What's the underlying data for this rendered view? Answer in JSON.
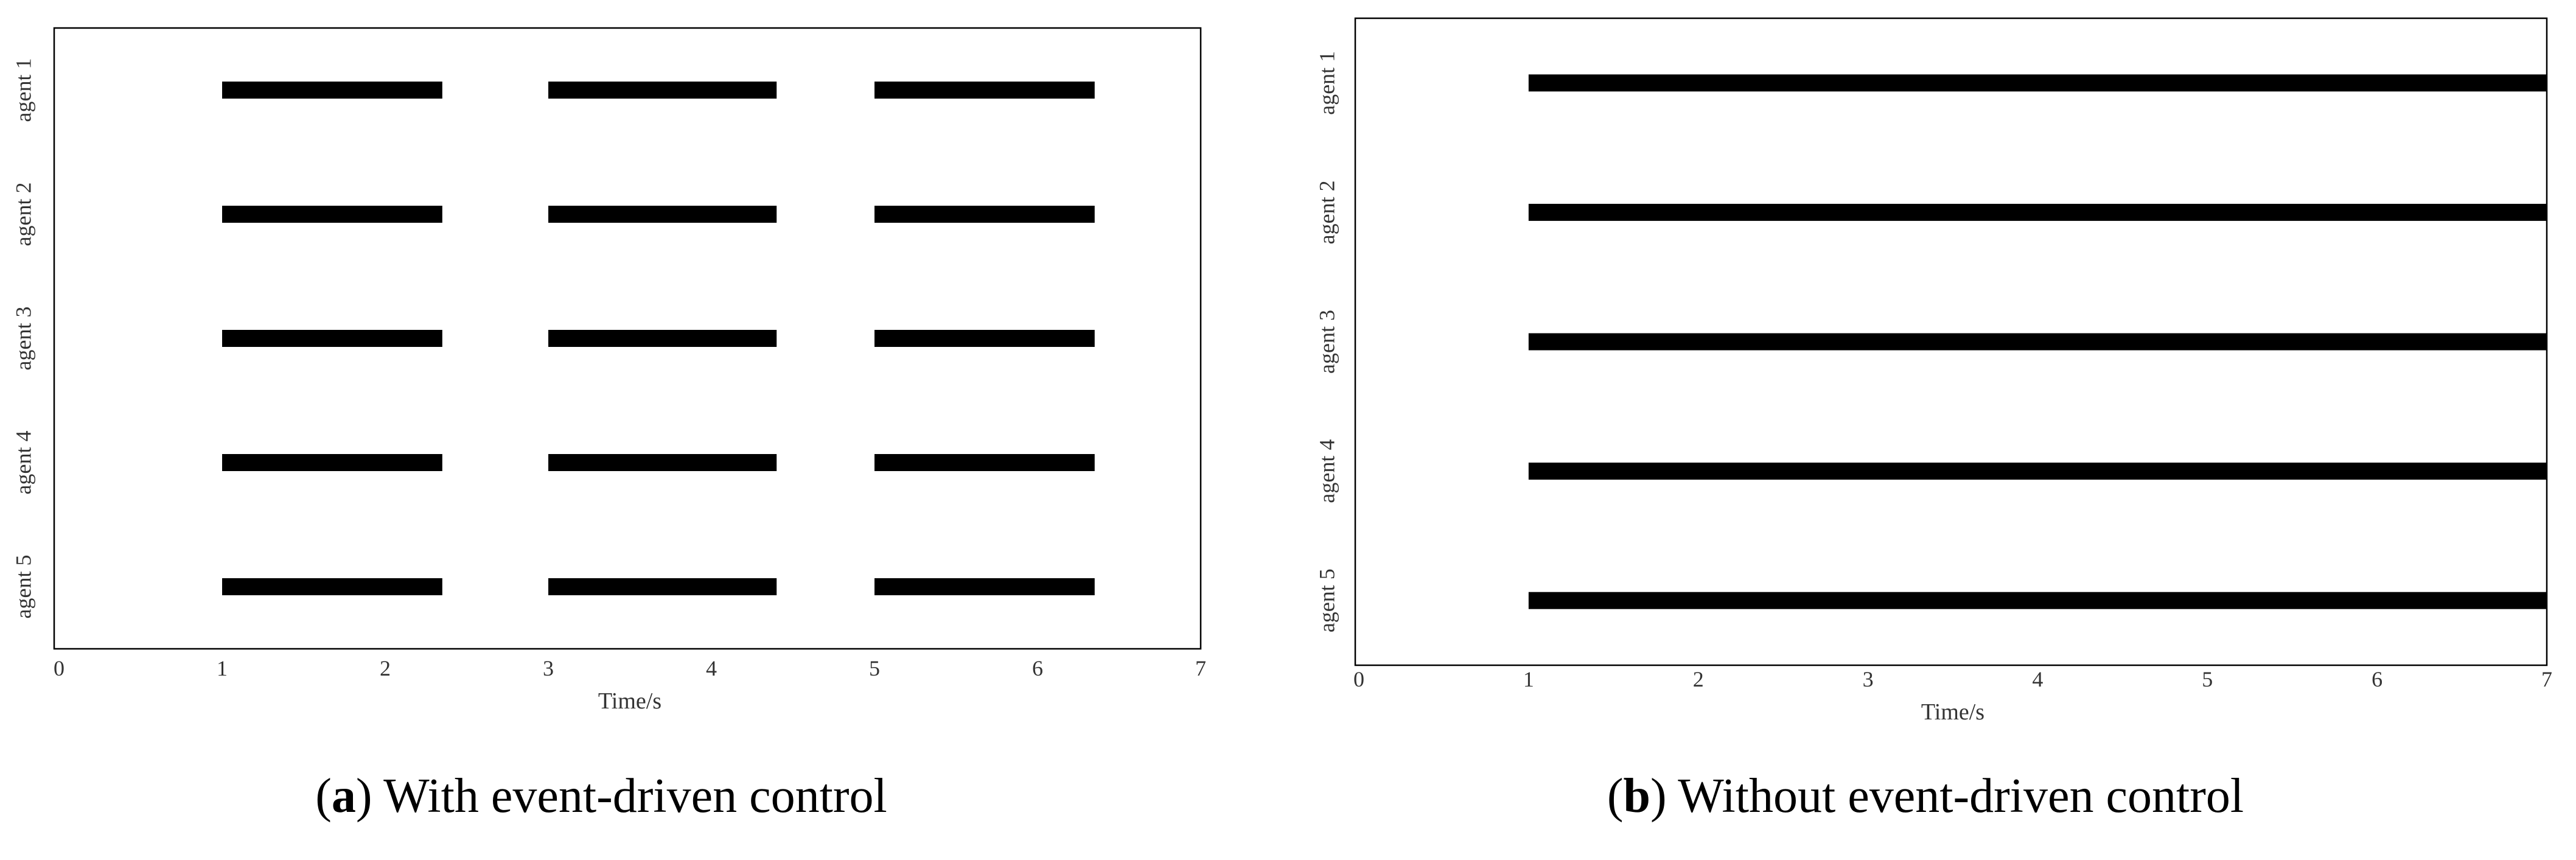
{
  "chart_data": [
    {
      "type": "timeline",
      "x_label": "Time/s",
      "xlim": [
        0,
        7
      ],
      "xticks": [
        0,
        1,
        2,
        3,
        4,
        5,
        6,
        7
      ],
      "series": [
        {
          "name": "agent 1",
          "color": "#000000",
          "segments": [
            [
              1,
              2.35
            ],
            [
              3,
              4.4
            ],
            [
              5,
              6.35
            ]
          ]
        },
        {
          "name": "agent 2",
          "color": "#000000",
          "segments": [
            [
              1,
              2.35
            ],
            [
              3,
              4.4
            ],
            [
              5,
              6.35
            ]
          ]
        },
        {
          "name": "agent 3",
          "color": "#000000",
          "segments": [
            [
              1,
              2.35
            ],
            [
              3,
              4.4
            ],
            [
              5,
              6.35
            ]
          ]
        },
        {
          "name": "agent 4",
          "color": "#000000",
          "segments": [
            [
              1,
              2.35
            ],
            [
              3,
              4.4
            ],
            [
              5,
              6.35
            ]
          ]
        },
        {
          "name": "agent 5",
          "color": "#000000",
          "segments": [
            [
              1,
              2.35
            ],
            [
              3,
              4.4
            ],
            [
              5,
              6.35
            ]
          ]
        }
      ],
      "caption": [
        "(",
        "a",
        ") With event-driven control"
      ]
    },
    {
      "type": "timeline",
      "x_label": "Time/s",
      "xlim": [
        0,
        7
      ],
      "xticks": [
        0,
        1,
        2,
        3,
        4,
        5,
        6,
        7
      ],
      "series": [
        {
          "name": "agent 1",
          "color": "#000000",
          "segments": [
            [
              1,
              7
            ]
          ]
        },
        {
          "name": "agent 2",
          "color": "#000000",
          "segments": [
            [
              1,
              7
            ]
          ]
        },
        {
          "name": "agent 3",
          "color": "#000000",
          "segments": [
            [
              1,
              7
            ]
          ]
        },
        {
          "name": "agent 4",
          "color": "#000000",
          "segments": [
            [
              1,
              7
            ]
          ]
        },
        {
          "name": "agent 5",
          "color": "#000000",
          "segments": [
            [
              1,
              7
            ]
          ]
        }
      ],
      "caption": [
        "(",
        "b",
        ") Without event-driven control"
      ]
    }
  ]
}
